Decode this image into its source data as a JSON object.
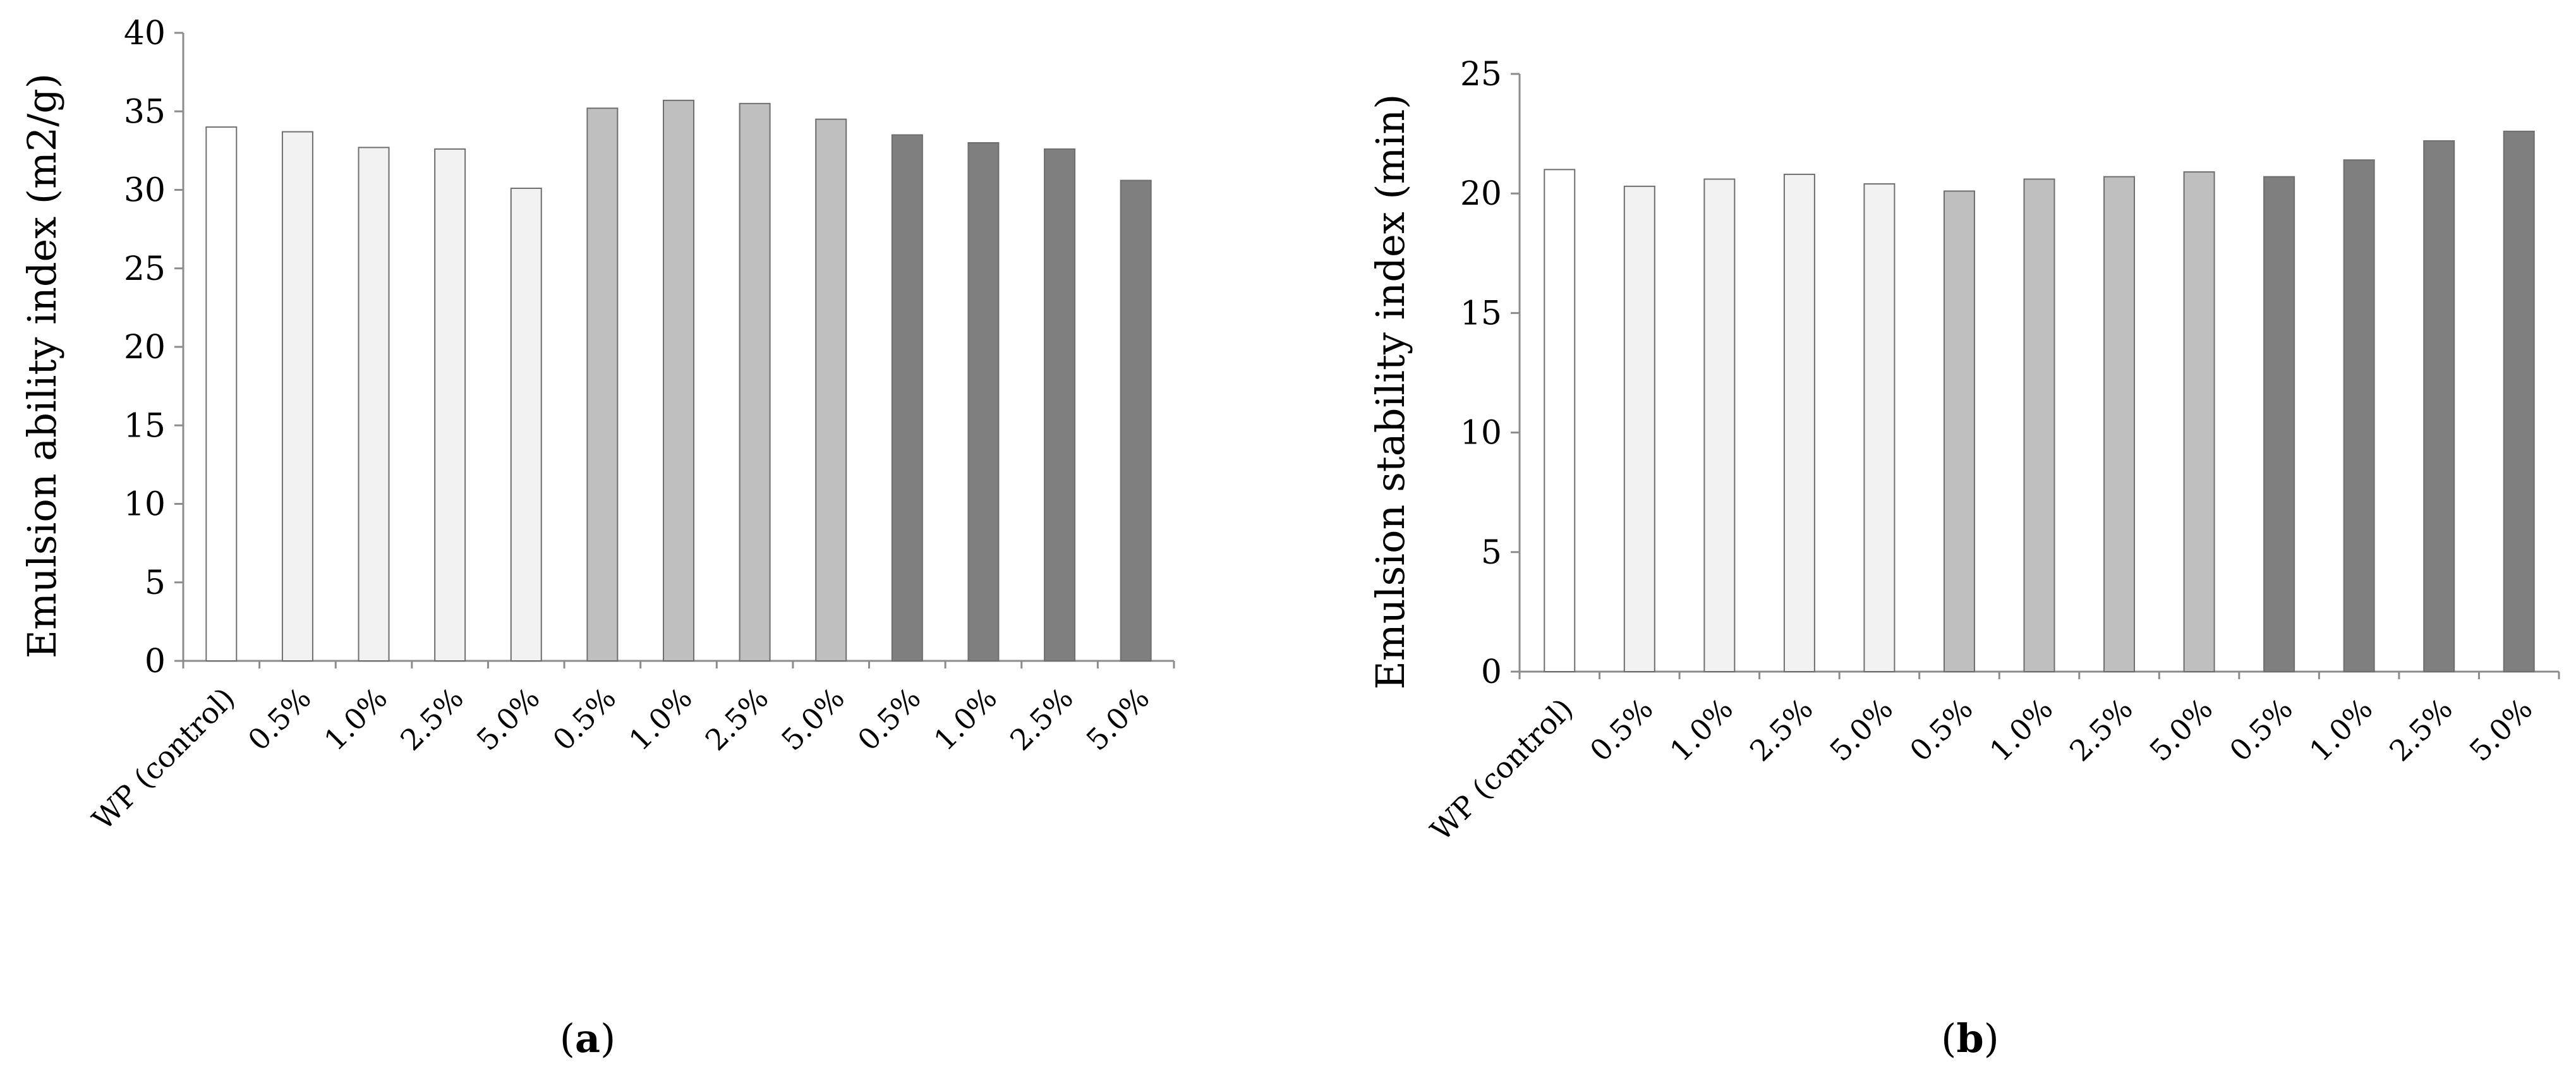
{
  "colors": {
    "axis": "#8c8c8c",
    "bar_stroke": "#6e6e6e",
    "series_fills": [
      "#ffffff",
      "#f2f2f2",
      "#bfbfbf",
      "#7f7f7f"
    ]
  },
  "chart_data": [
    {
      "type": "bar",
      "panel_label": "a",
      "ylabel": "Emulsion ability index  (m2/g)",
      "xlabel": "",
      "ylim": [
        0,
        40
      ],
      "yticks": [
        0,
        5,
        10,
        15,
        20,
        25,
        30,
        35,
        40
      ],
      "grid": false,
      "categories": [
        "WP (control)",
        "0.5%",
        "1.0%",
        "2.5%",
        "5.0%",
        "0.5%",
        "1.0%",
        "2.5%",
        "5.0%",
        "0.5%",
        "1.0%",
        "2.5%",
        "5.0%"
      ],
      "values": [
        34.0,
        33.7,
        32.7,
        32.6,
        30.1,
        35.2,
        35.7,
        35.5,
        34.5,
        33.5,
        33.0,
        32.6,
        30.6
      ],
      "groups": [
        0,
        1,
        1,
        1,
        1,
        2,
        2,
        2,
        2,
        3,
        3,
        3,
        3
      ]
    },
    {
      "type": "bar",
      "panel_label": "b",
      "ylabel": "Emulsion stability index (min)",
      "xlabel": "",
      "ylim": [
        0,
        25
      ],
      "yticks": [
        0,
        5,
        10,
        15,
        20,
        25
      ],
      "grid": false,
      "categories": [
        "WP (control)",
        "0.5%",
        "1.0%",
        "2.5%",
        "5.0%",
        "0.5%",
        "1.0%",
        "2.5%",
        "5.0%",
        "0.5%",
        "1.0%",
        "2.5%",
        "5.0%"
      ],
      "values": [
        21.0,
        20.3,
        20.6,
        20.8,
        20.4,
        20.1,
        20.6,
        20.7,
        20.9,
        20.7,
        21.4,
        22.2,
        22.6
      ],
      "groups": [
        0,
        1,
        1,
        1,
        1,
        2,
        2,
        2,
        2,
        3,
        3,
        3,
        3
      ]
    }
  ]
}
